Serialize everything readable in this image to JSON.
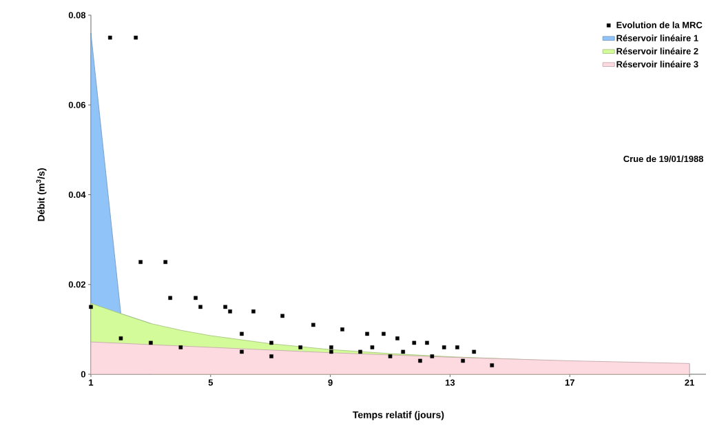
{
  "chart_data": {
    "type": "scatter",
    "xlabel": "Temps relatif (jours)",
    "ylabel": "Débit (m$^{3}$/s)",
    "xlim": [
      1,
      21.55
    ],
    "ylim": [
      0,
      0.08
    ],
    "xticks": [
      1,
      5,
      9,
      13,
      17,
      21
    ],
    "yticks": [
      0,
      0.02,
      0.04,
      0.06,
      0.08
    ],
    "legend": "top right",
    "grid": false,
    "annotations": [
      "Crue de 19/01/1988"
    ],
    "series": [
      {
        "name": "Réservoir linéaire 1",
        "type": "area",
        "color": "#90c3f8",
        "x": [
          1,
          2,
          3
        ],
        "values": [
          0.076,
          0.0135,
          0.0113
        ]
      },
      {
        "name": "Réservoir linéaire 2",
        "type": "area",
        "color": "#d4fb9a",
        "x": [
          1,
          2,
          3,
          4,
          5,
          7,
          9,
          11,
          13,
          15,
          17,
          19,
          21
        ],
        "values": [
          0.0158,
          0.0135,
          0.0113,
          0.0098,
          0.0086,
          0.0068,
          0.0055,
          0.0046,
          0.0039,
          0.0034,
          0.0029,
          0.0026,
          0.0023
        ]
      },
      {
        "name": "Réservoir linéaire 3",
        "type": "area",
        "color": "#fdd9e0",
        "x": [
          1,
          5,
          9,
          13,
          17,
          21
        ],
        "values": [
          0.0072,
          0.006,
          0.0048,
          0.0038,
          0.003,
          0.0024
        ]
      },
      {
        "name": "Evolution de la MRC",
        "marker": "square",
        "color": "#000000",
        "x": [
          1,
          1.64,
          2.5,
          2.0,
          2.66,
          3.0,
          3.49,
          3.65,
          4.0,
          4.5,
          4.66,
          5.49,
          5.65,
          6.04,
          6.43,
          6.04,
          7.03,
          7.03,
          7.4,
          8.0,
          8.43,
          9.03,
          9.03,
          9.4,
          10.0,
          10.23,
          10.4,
          10.78,
          11.0,
          11.24,
          11.43,
          11.8,
          12.0,
          12.23,
          12.4,
          12.8,
          13.24,
          13.43,
          13.8,
          14.4
        ],
        "values": [
          0.015,
          0.075,
          0.075,
          0.008,
          0.025,
          0.007,
          0.025,
          0.017,
          0.006,
          0.017,
          0.015,
          0.015,
          0.014,
          0.009,
          0.014,
          0.005,
          0.007,
          0.004,
          0.013,
          0.006,
          0.011,
          0.006,
          0.005,
          0.01,
          0.005,
          0.009,
          0.006,
          0.009,
          0.004,
          0.008,
          0.005,
          0.007,
          0.003,
          0.007,
          0.004,
          0.006,
          0.006,
          0.003,
          0.005,
          0.002
        ]
      }
    ]
  }
}
